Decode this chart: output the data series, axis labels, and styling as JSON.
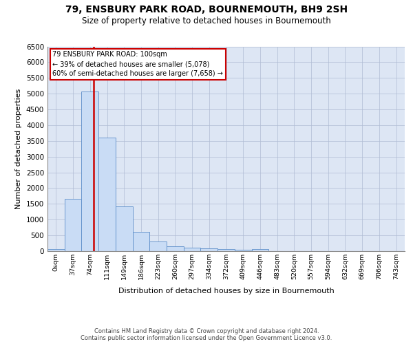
{
  "title": "79, ENSBURY PARK ROAD, BOURNEMOUTH, BH9 2SH",
  "subtitle": "Size of property relative to detached houses in Bournemouth",
  "xlabel": "Distribution of detached houses by size in Bournemouth",
  "ylabel": "Number of detached properties",
  "footer_line1": "Contains HM Land Registry data © Crown copyright and database right 2024.",
  "footer_line2": "Contains public sector information licensed under the Open Government Licence v3.0.",
  "bar_labels": [
    "0sqm",
    "37sqm",
    "74sqm",
    "111sqm",
    "149sqm",
    "186sqm",
    "223sqm",
    "260sqm",
    "297sqm",
    "334sqm",
    "372sqm",
    "409sqm",
    "446sqm",
    "483sqm",
    "520sqm",
    "557sqm",
    "594sqm",
    "632sqm",
    "669sqm",
    "706sqm",
    "743sqm"
  ],
  "bar_values": [
    75,
    1650,
    5075,
    3600,
    1420,
    620,
    300,
    155,
    110,
    80,
    60,
    45,
    65,
    0,
    0,
    0,
    0,
    0,
    0,
    0,
    0
  ],
  "bar_color": "#c9dcf5",
  "bar_edge_color": "#5b8dc8",
  "grid_color": "#b0bcd4",
  "bg_color": "#dde6f4",
  "property_line_color": "#cc0000",
  "annotation_text": "79 ENSBURY PARK ROAD: 100sqm\n← 39% of detached houses are smaller (5,078)\n60% of semi-detached houses are larger (7,658) →",
  "annotation_box_edgecolor": "#cc0000",
  "ylim_max": 6500,
  "yticks": [
    0,
    500,
    1000,
    1500,
    2000,
    2500,
    3000,
    3500,
    4000,
    4500,
    5000,
    5500,
    6000,
    6500
  ]
}
